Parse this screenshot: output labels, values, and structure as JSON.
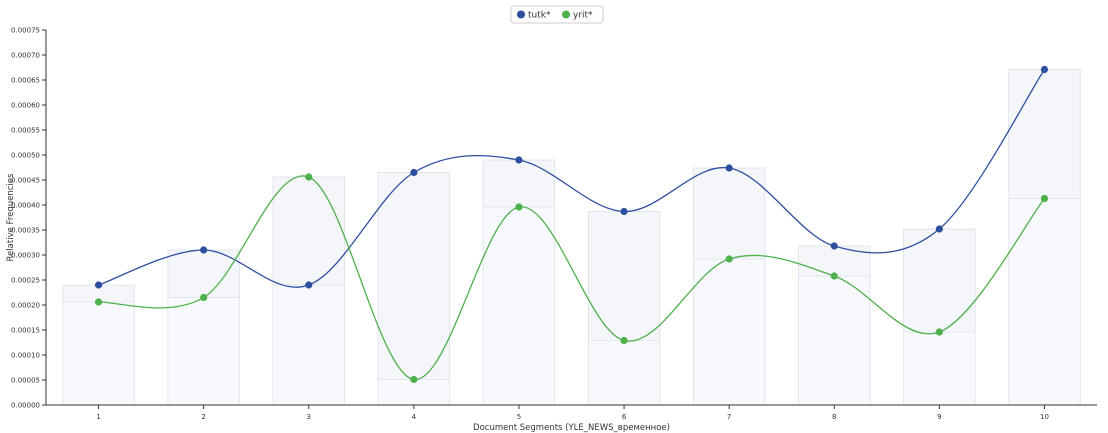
{
  "chart_data": {
    "type": "line",
    "xlabel": "Document Segments (YLE_NEWS_временное)",
    "ylabel": "Relative Frequencies",
    "ylim": [
      0,
      0.00075
    ],
    "y_ticks": [
      "0.00000",
      "0.00005",
      "0.00010",
      "0.00015",
      "0.00020",
      "0.00025",
      "0.00030",
      "0.00035",
      "0.00040",
      "0.00045",
      "0.00050",
      "0.00055",
      "0.00060",
      "0.00065",
      "0.00070",
      "0.00075"
    ],
    "categories": [
      "1",
      "2",
      "3",
      "4",
      "5",
      "6",
      "7",
      "8",
      "9",
      "10"
    ],
    "series": [
      {
        "name": "tutk*",
        "color": "#2e4fa0",
        "values": [
          0.00024,
          0.00031,
          0.00024,
          0.000465,
          0.00049,
          0.000387,
          0.000474,
          0.000318,
          0.000352,
          0.000671
        ]
      },
      {
        "name": "yrit*",
        "color": "#4db04a",
        "values": [
          0.000206,
          0.000215,
          0.000456,
          5.1e-05,
          0.000396,
          0.000129,
          0.000292,
          0.000258,
          0.000146,
          0.000413
        ]
      }
    ],
    "bars": "behind each segment, translucent bars mark both series' values",
    "legend_position": "top-center",
    "grid": false
  }
}
